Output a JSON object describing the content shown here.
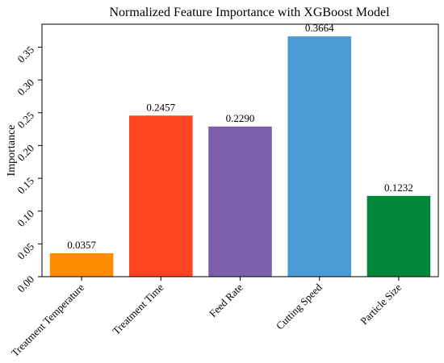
{
  "chart_data": {
    "type": "bar",
    "title": "Normalized Feature Importance with XGBoost Model",
    "xlabel": "",
    "ylabel": "Importance",
    "categories": [
      "Treatment Temperature",
      "Treatment Time",
      "Feed Rate",
      "Cutting Speed",
      "Particle Size"
    ],
    "values": [
      0.0357,
      0.2457,
      0.229,
      0.3664,
      0.1232
    ],
    "value_labels": [
      "0.0357",
      "0.2457",
      "0.2290",
      "0.3664",
      "0.1232"
    ],
    "colors": [
      "#ff8c00",
      "#ff4520",
      "#7b5faa",
      "#4a9ad4",
      "#00873a"
    ],
    "ylim": [
      0,
      0.385
    ],
    "yticks": [
      0.0,
      0.05,
      0.1,
      0.15,
      0.2,
      0.25,
      0.3,
      0.35
    ],
    "ytick_labels": [
      "0.00",
      "0.05",
      "0.10",
      "0.15",
      "0.20",
      "0.25",
      "0.30",
      "0.35"
    ],
    "grid": false,
    "legend": "none"
  }
}
